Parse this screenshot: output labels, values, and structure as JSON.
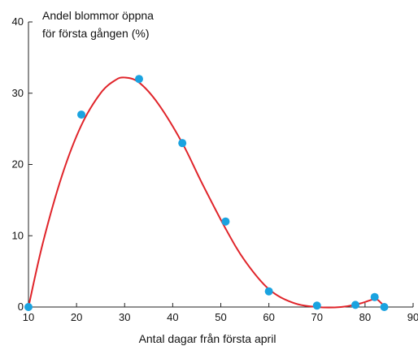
{
  "chart_data": {
    "type": "scatter",
    "ylabel_lines": [
      "Andel blommor öppna",
      "för första gången (%)"
    ],
    "xlabel": "Antal dagar från första april",
    "xlim": [
      10,
      90
    ],
    "ylim": [
      0,
      40
    ],
    "xticks": [
      10,
      20,
      30,
      40,
      50,
      60,
      70,
      80,
      90
    ],
    "yticks": [
      0,
      10,
      20,
      30,
      40
    ],
    "grid": false,
    "point_color": "#1aa3e0",
    "curve_color": "#e0242a",
    "points": [
      {
        "x": 10,
        "y": 0
      },
      {
        "x": 21,
        "y": 27
      },
      {
        "x": 33,
        "y": 32
      },
      {
        "x": 42,
        "y": 23
      },
      {
        "x": 51,
        "y": 12
      },
      {
        "x": 60,
        "y": 2.2
      },
      {
        "x": 70,
        "y": 0.2
      },
      {
        "x": 78,
        "y": 0.3
      },
      {
        "x": 82,
        "y": 1.4
      },
      {
        "x": 84,
        "y": 0
      }
    ],
    "curve": [
      {
        "x": 10,
        "y": 0
      },
      {
        "x": 13,
        "y": 9
      },
      {
        "x": 17,
        "y": 18.5
      },
      {
        "x": 21,
        "y": 25.5
      },
      {
        "x": 25,
        "y": 30
      },
      {
        "x": 28,
        "y": 31.8
      },
      {
        "x": 30,
        "y": 32.2
      },
      {
        "x": 33,
        "y": 31.5
      },
      {
        "x": 37,
        "y": 28.5
      },
      {
        "x": 42,
        "y": 23
      },
      {
        "x": 46,
        "y": 17.5
      },
      {
        "x": 51,
        "y": 11
      },
      {
        "x": 55,
        "y": 6.5
      },
      {
        "x": 60,
        "y": 2.5
      },
      {
        "x": 65,
        "y": 0.6
      },
      {
        "x": 70,
        "y": 0
      },
      {
        "x": 75,
        "y": 0
      },
      {
        "x": 79,
        "y": 0.5
      },
      {
        "x": 82,
        "y": 1.1
      },
      {
        "x": 83.3,
        "y": 0.6
      },
      {
        "x": 84,
        "y": 0
      }
    ]
  }
}
